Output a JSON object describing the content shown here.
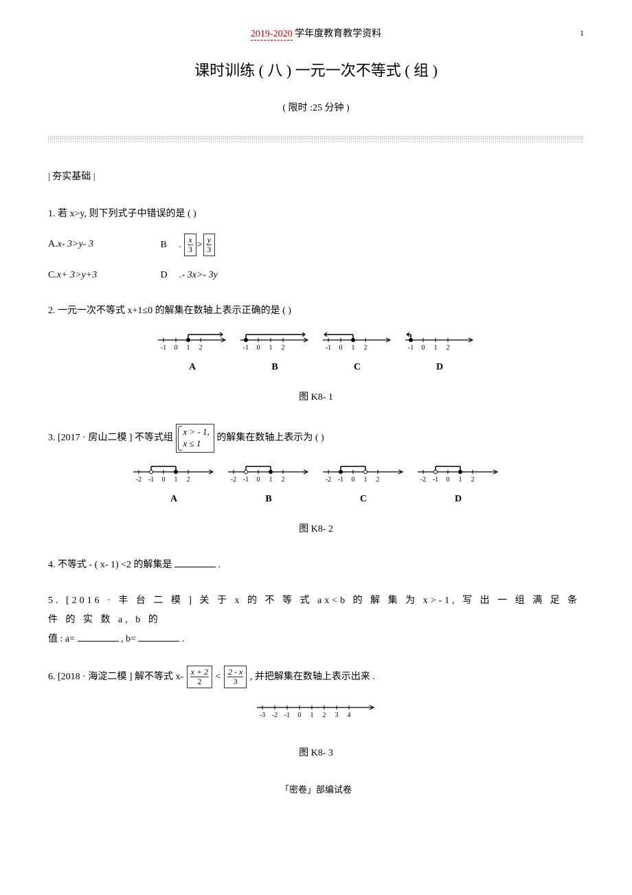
{
  "header": {
    "dashed": "2019-2020",
    "rest": "  学年度教育教学资料",
    "page_number": "1"
  },
  "title": "课时训练 ( 八 )    一元一次不等式  ( 组 )",
  "subtitle": "( 限时 :25  分钟 )",
  "section_label": "| 夯实基础  |",
  "q1": {
    "stem": "1. 若 x>y, 则下列式子中错误的是     (          )",
    "optA_label": "A.",
    "optA_text": "x- 3>y- 3",
    "optB_label": "B",
    "optB_dot": ".",
    "optB_frac_left_num": "x",
    "optB_frac_left_den": "3",
    "optB_frac_gt": ">",
    "optB_frac_right_num": "y",
    "optB_frac_right_den": "3",
    "optC_label": "C.",
    "optC_text": "x+ 3>y+3",
    "optD_label": "D",
    "optD_text": ".- 3x>- 3y"
  },
  "q2": {
    "stem": "2. 一元一次不等式    x+1≤0  的解集在数轴上表示正确的是         (          )",
    "fig_caption": "图 K8- 1",
    "numberlines": {
      "ticks": [
        "-1",
        "0",
        "1",
        "2"
      ],
      "labels": [
        "A",
        "B",
        "C",
        "D"
      ],
      "tick_color": "#000000",
      "axis_color": "#000000",
      "variants": [
        {
          "mark_at": 1,
          "filled": true,
          "ray": "right"
        },
        {
          "mark_at": -1,
          "filled": true,
          "ray": "right"
        },
        {
          "mark_at": 1,
          "filled": true,
          "ray": "left"
        },
        {
          "mark_at": -1,
          "filled": true,
          "ray": "left"
        }
      ]
    }
  },
  "q3": {
    "stem_pre": "3. [2017 · 房山二模  ]   不等式组   ",
    "case_line1": "x >  - 1,",
    "case_line2": " x ≤ 1",
    "stem_post": "的解集在数轴上表示为       (         )",
    "fig_caption": "图 K8- 2",
    "numberlines": {
      "ticks": [
        "-2",
        "-1",
        "0",
        "1",
        "2"
      ],
      "labels": [
        "A",
        "B",
        "C",
        "D"
      ],
      "tick_color": "#000000",
      "axis_color": "#000000",
      "variants": [
        {
          "open_at": -1,
          "closed_at": 1,
          "segment": [
            -1,
            1
          ],
          "closed_right": true
        },
        {
          "open_at": -1,
          "closed_at": 1,
          "segment": [
            -1,
            1
          ],
          "closed_right": false,
          "right_open": true
        },
        {
          "open_at": 1,
          "closed_at": -1,
          "segment": [
            -1,
            1
          ],
          "left_closed": true
        },
        {
          "open_at": -1,
          "closed_at": 1,
          "segment": [
            -1,
            1
          ],
          "both_open": false,
          "alt": true
        }
      ]
    }
  },
  "q4": {
    "stem_pre": "4. 不等式 - ( x- 1) <2 的解集是  ",
    "stem_post": "."
  },
  "q5": {
    "line1_pre": "5. [2016 ·  丰 台 二 模 ]   关 于  x  的 不 等 式  ax<b  的 解 集 为  x>-1,  写 出 一 组 满 足 条 件 的 实 数   a, b  的",
    "line2_pre": "值 : a=",
    "line2_mid": ", b=",
    "line2_post": "."
  },
  "q6": {
    "stem_pre": "6. [2018 · 海淀二模  ]   解不等式   x- ",
    "frac1_num": "x + 2",
    "frac1_den": "2",
    "lt": "<",
    "frac2_num": "2 - x",
    "frac2_den": "3",
    "stem_post": ", 并把解集在数轴上表示出来     .",
    "fig_caption": "图 K8- 3",
    "numberline": {
      "ticks": [
        "-3",
        "-2",
        "-1",
        "0",
        "1",
        "2",
        "3",
        "4"
      ],
      "axis_color": "#000000"
    }
  },
  "footer": "「密卷」部编试卷"
}
